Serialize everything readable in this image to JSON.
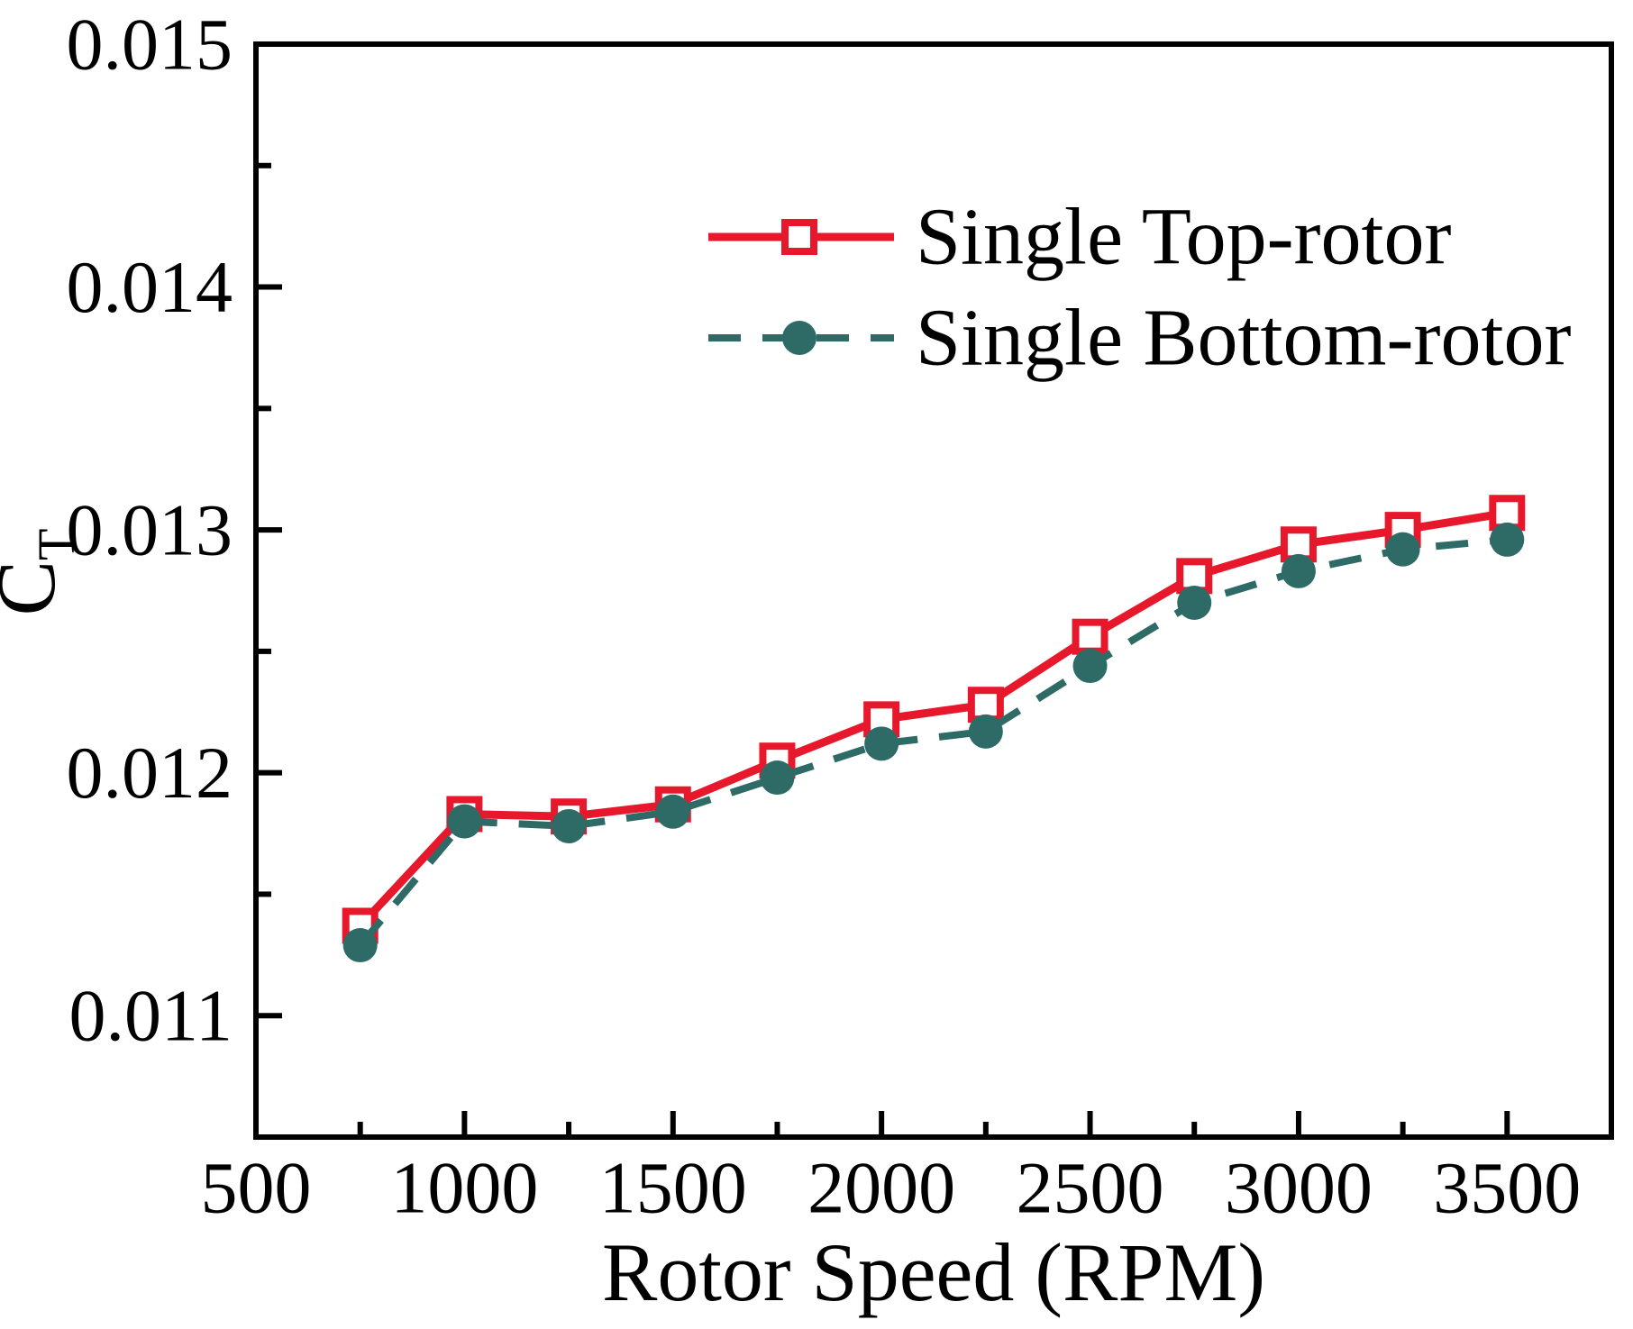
{
  "figure": {
    "background": "#ffffff",
    "axis_color": "#000000"
  },
  "chart_data": {
    "type": "line",
    "title": "",
    "xlabel": "Rotor Speed (RPM)",
    "ylabel": "C_T",
    "ylabel_main": "C",
    "ylabel_sub": "T",
    "xlim": [
      500,
      3750
    ],
    "ylim": [
      0.0105,
      0.015
    ],
    "grid": false,
    "legend_position": "upper-right-inside",
    "x_major_ticks": [
      500,
      1000,
      1500,
      2000,
      2500,
      3000,
      3500
    ],
    "x_minor_ticks": [
      750,
      1250,
      1750,
      2250,
      2750,
      3250
    ],
    "y_major_ticks": [
      0.011,
      0.012,
      0.013,
      0.014,
      0.015
    ],
    "y_minor_ticks": [
      0.0115,
      0.0125,
      0.0135,
      0.0145
    ],
    "x": [
      750,
      1000,
      1250,
      1500,
      1750,
      2000,
      2250,
      2500,
      2750,
      3000,
      3250,
      3500
    ],
    "series": [
      {
        "name": "Single Top-rotor",
        "color": "#e8182c",
        "line": "solid",
        "marker": "open-square",
        "values": [
          0.01137,
          0.01183,
          0.01182,
          0.01187,
          0.01205,
          0.01222,
          0.01228,
          0.01256,
          0.01281,
          0.01294,
          0.013,
          0.01307
        ]
      },
      {
        "name": "Single Bottom-rotor",
        "color": "#2e6b67",
        "line": "dashed",
        "marker": "filled-circle",
        "values": [
          0.01129,
          0.0118,
          0.01178,
          0.01184,
          0.01198,
          0.01212,
          0.01217,
          0.01244,
          0.0127,
          0.01283,
          0.01292,
          0.01296
        ]
      }
    ]
  }
}
